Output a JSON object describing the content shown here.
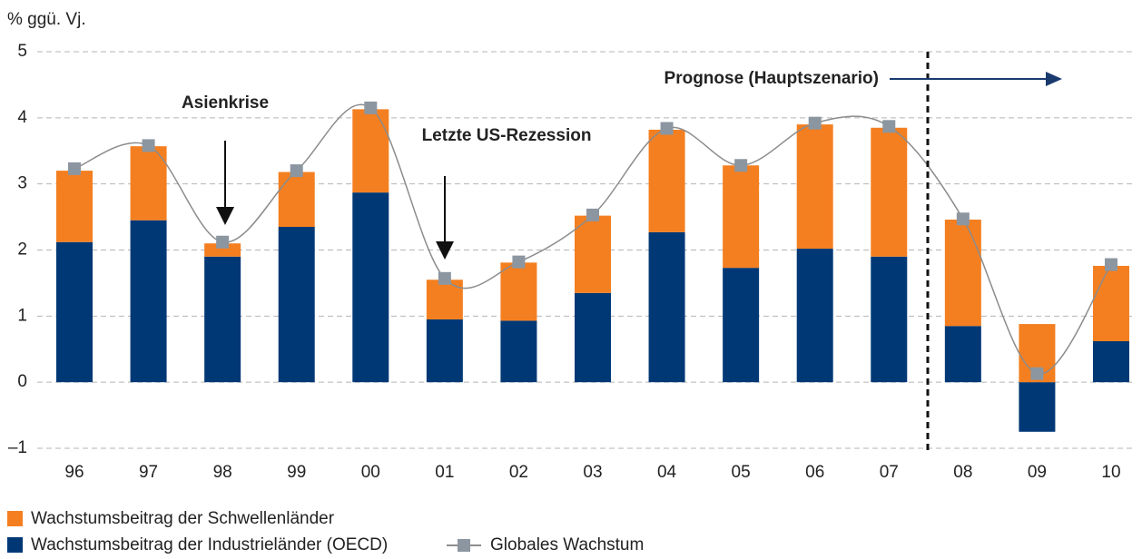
{
  "chart_data": {
    "type": "bar",
    "stacked": true,
    "y_axis_label": "% ggü. Vj.",
    "categories": [
      "96",
      "97",
      "98",
      "99",
      "00",
      "01",
      "02",
      "03",
      "04",
      "05",
      "06",
      "07",
      "08",
      "09",
      "10"
    ],
    "series": [
      {
        "name": "Wachstumsbeitrag der Industrieländer (OECD)",
        "color": "#003876",
        "type": "bar",
        "values": [
          2.12,
          2.45,
          1.9,
          2.35,
          2.87,
          0.95,
          0.93,
          1.35,
          2.27,
          1.73,
          2.02,
          1.9,
          0.85,
          -0.75,
          0.62
        ]
      },
      {
        "name": "Wachstumsbeitrag der Schwellenländer",
        "color": "#f47f20",
        "type": "bar",
        "values": [
          1.08,
          1.12,
          0.2,
          0.83,
          1.26,
          0.6,
          0.88,
          1.17,
          1.55,
          1.55,
          1.88,
          1.95,
          1.61,
          0.88,
          1.14
        ]
      },
      {
        "name": "Globales Wachstum",
        "color": "#8c8c8c",
        "marker_color": "#8c96a0",
        "type": "line",
        "values": [
          3.23,
          3.58,
          2.12,
          3.2,
          4.15,
          1.57,
          1.82,
          2.53,
          3.84,
          3.28,
          3.92,
          3.87,
          2.47,
          0.13,
          1.78
        ]
      }
    ],
    "ylim": [
      -1,
      5
    ],
    "yticks": [
      {
        "value": -1,
        "label": "–1"
      },
      0,
      1,
      2,
      3,
      4,
      5
    ],
    "grid": true,
    "annotations": [
      "Asienkrise",
      "Letzte US-Rezession",
      "Prognose (Hauptszenario)"
    ]
  }
}
